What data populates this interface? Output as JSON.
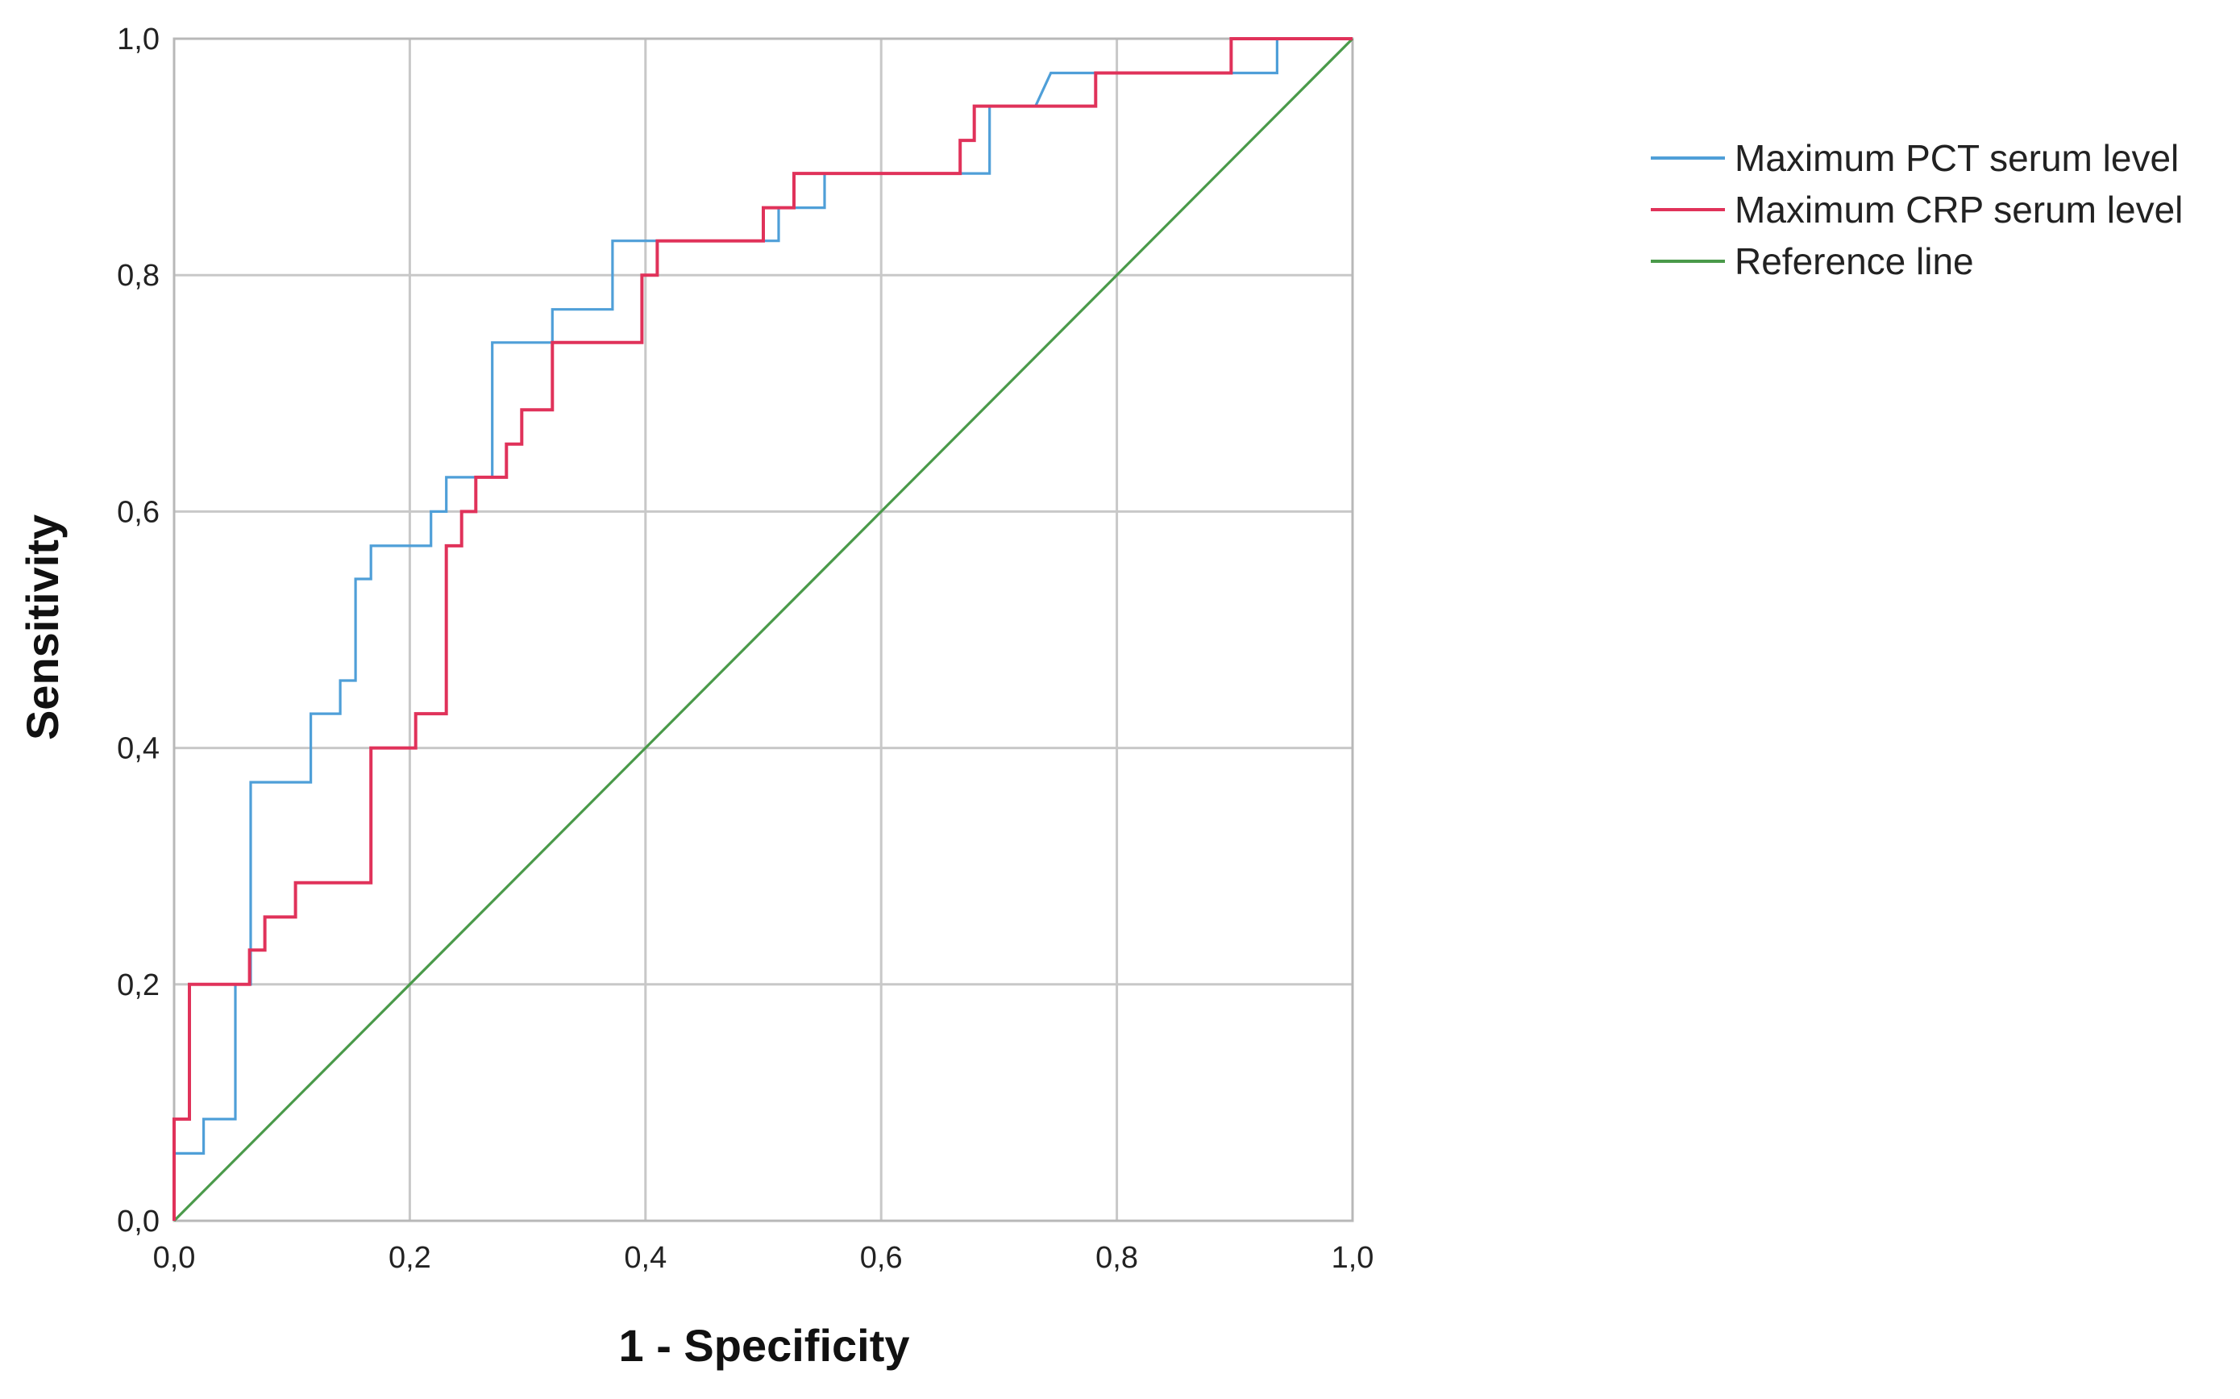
{
  "chart_data": {
    "type": "line",
    "title": "",
    "xlabel": "1 - Specificity",
    "ylabel": "Sensitivity",
    "xlim": [
      0,
      1
    ],
    "ylim": [
      0,
      1
    ],
    "xticks": [
      "0,0",
      "0,2",
      "0,4",
      "0,6",
      "0,8",
      "1,0"
    ],
    "yticks": [
      "0,0",
      "0,2",
      "0,4",
      "0,6",
      "0,8",
      "1,0"
    ],
    "grid": true,
    "legend_position": "right",
    "series": [
      {
        "name": "Maximum PCT serum level",
        "color": "#4f9fd8",
        "x": [
          0.0,
          0.0,
          0.025,
          0.025,
          0.052,
          0.052,
          0.065,
          0.065,
          0.116,
          0.116,
          0.141,
          0.141,
          0.154,
          0.154,
          0.167,
          0.167,
          0.218,
          0.218,
          0.231,
          0.231,
          0.27,
          0.27,
          0.321,
          0.321,
          0.372,
          0.372,
          0.41,
          0.41,
          0.513,
          0.513,
          0.526,
          0.526,
          0.552,
          0.552,
          0.667,
          0.667,
          0.692,
          0.692,
          0.731,
          0.744,
          0.936,
          0.936,
          1.0
        ],
        "y": [
          0.0,
          0.057,
          0.057,
          0.086,
          0.086,
          0.2,
          0.2,
          0.371,
          0.371,
          0.429,
          0.429,
          0.457,
          0.457,
          0.543,
          0.543,
          0.571,
          0.571,
          0.6,
          0.6,
          0.629,
          0.629,
          0.743,
          0.743,
          0.771,
          0.771,
          0.829,
          0.829,
          0.829,
          0.829,
          0.857,
          0.857,
          0.857,
          0.857,
          0.886,
          0.886,
          0.886,
          0.886,
          0.943,
          0.943,
          0.971,
          0.971,
          1.0,
          1.0
        ]
      },
      {
        "name": "Maximum CRP serum level",
        "color": "#e0325a",
        "x": [
          0.0,
          0.0,
          0.013,
          0.013,
          0.064,
          0.064,
          0.077,
          0.077,
          0.103,
          0.103,
          0.167,
          0.167,
          0.205,
          0.205,
          0.231,
          0.231,
          0.244,
          0.244,
          0.256,
          0.256,
          0.282,
          0.282,
          0.295,
          0.295,
          0.321,
          0.321,
          0.397,
          0.397,
          0.41,
          0.41,
          0.5,
          0.5,
          0.526,
          0.526,
          0.667,
          0.667,
          0.679,
          0.679,
          0.782,
          0.782,
          0.897,
          0.897,
          1.0
        ],
        "y": [
          0.0,
          0.086,
          0.086,
          0.2,
          0.2,
          0.229,
          0.229,
          0.257,
          0.257,
          0.286,
          0.286,
          0.4,
          0.4,
          0.429,
          0.429,
          0.571,
          0.571,
          0.6,
          0.6,
          0.629,
          0.629,
          0.657,
          0.657,
          0.686,
          0.686,
          0.743,
          0.743,
          0.8,
          0.8,
          0.829,
          0.829,
          0.857,
          0.857,
          0.886,
          0.886,
          0.914,
          0.914,
          0.943,
          0.943,
          0.971,
          0.971,
          1.0,
          1.0
        ]
      },
      {
        "name": "Reference line",
        "color": "#4a9a4a",
        "x": [
          0.0,
          1.0
        ],
        "y": [
          0.0,
          1.0
        ]
      }
    ]
  }
}
